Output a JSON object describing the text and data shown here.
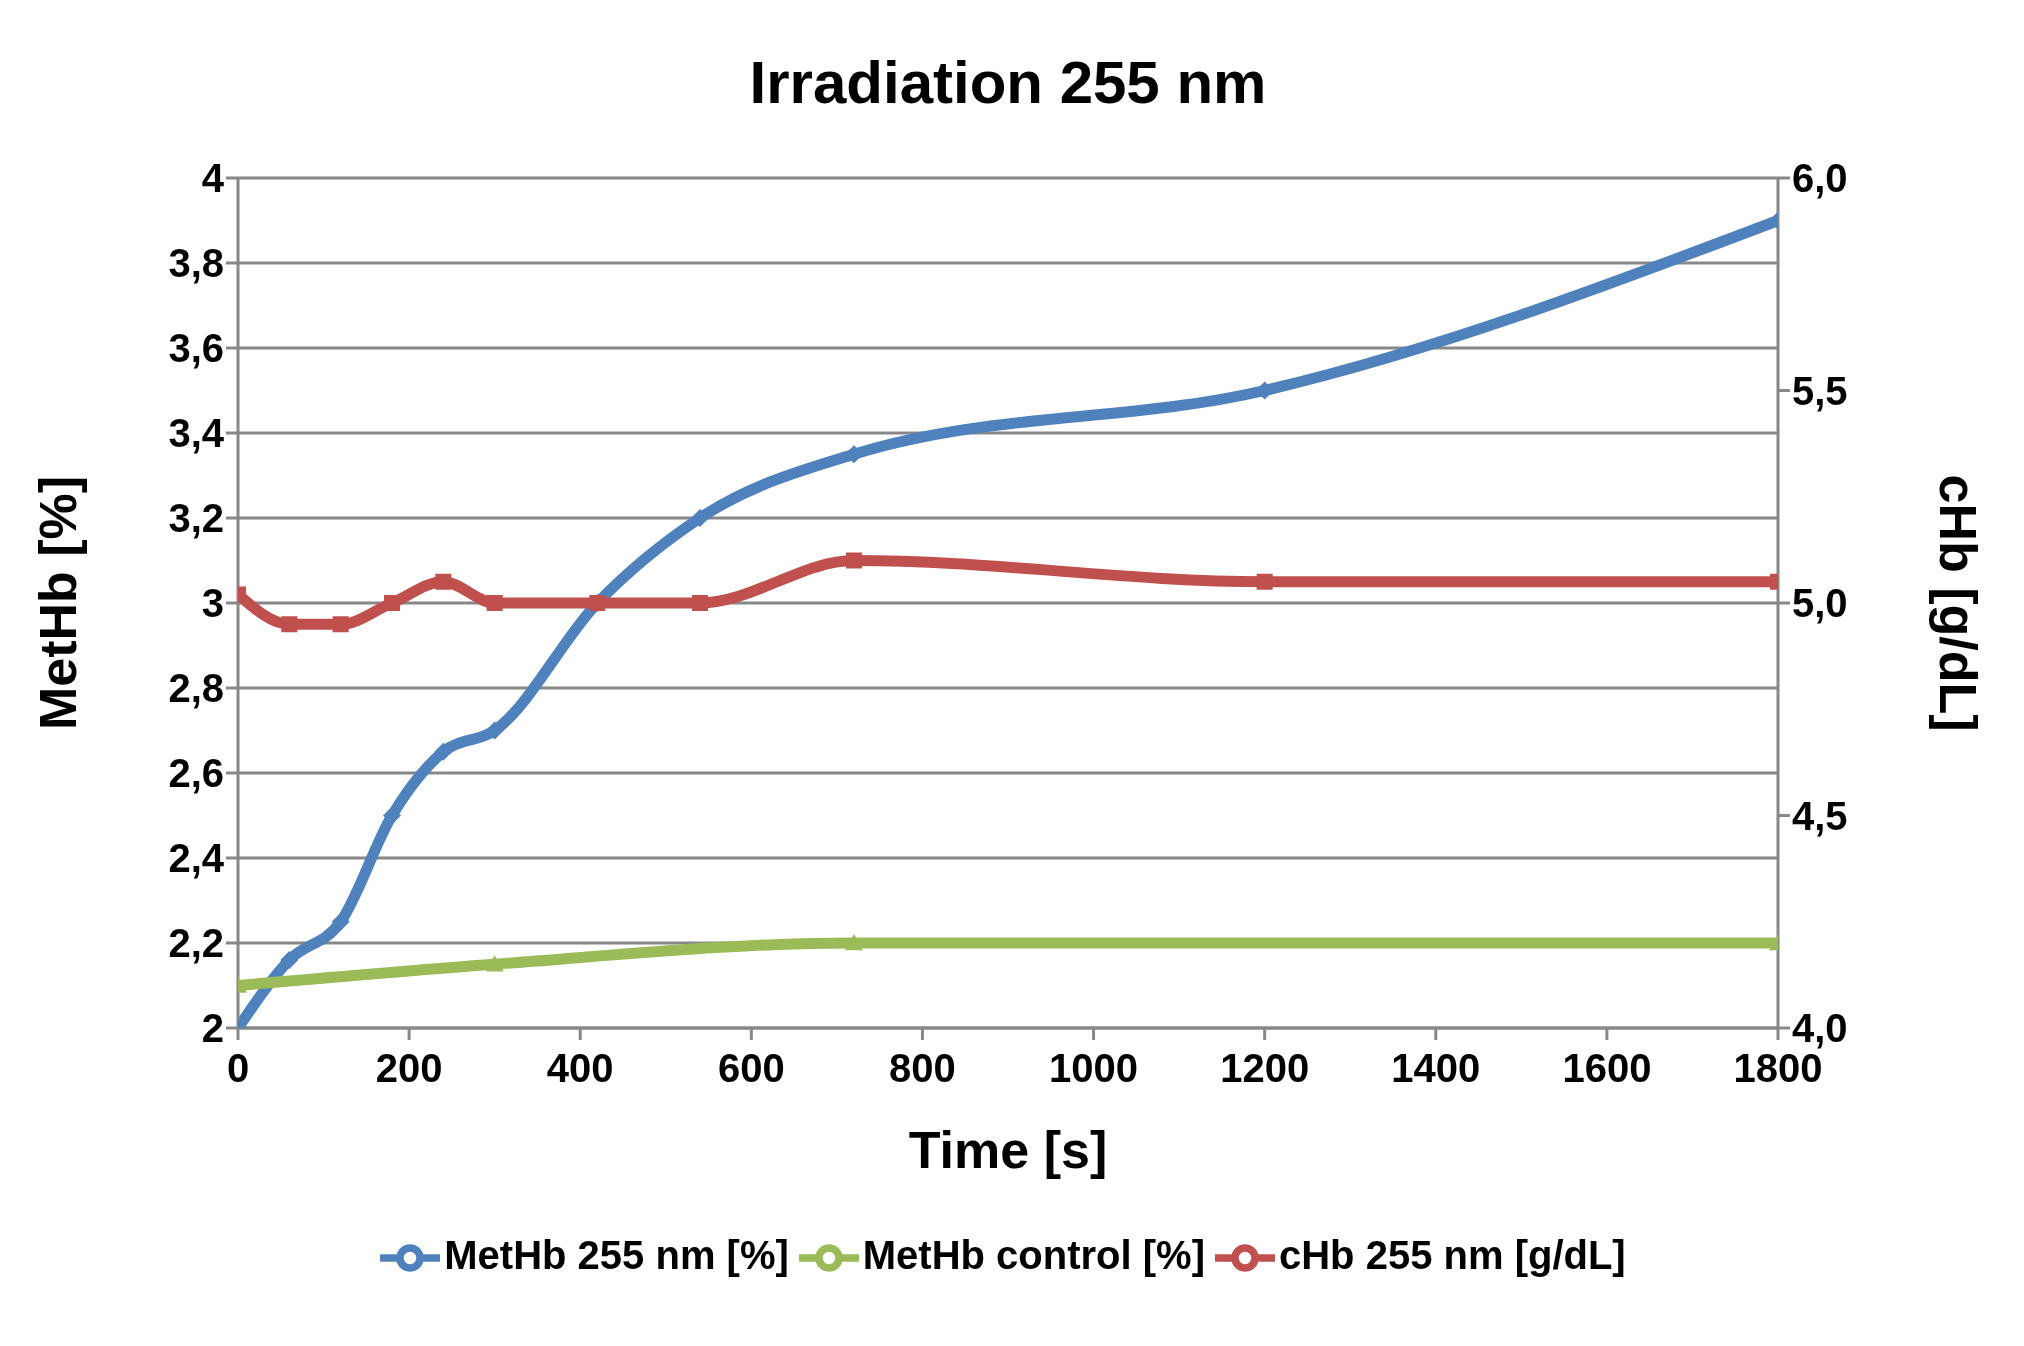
{
  "chart_data": {
    "type": "line",
    "title": "Irradiation 255 nm",
    "xlabel": "Time [s]",
    "ylabel": "MetHb [%]",
    "y2label": "cHb [g/dL]",
    "xlim": [
      0,
      1800
    ],
    "xticks": [
      0,
      200,
      400,
      600,
      800,
      1000,
      1200,
      1400,
      1600,
      1800
    ],
    "ylim": [
      2,
      4
    ],
    "yticks": [
      2,
      {
        "value": 2.2,
        "label": "2,2"
      },
      {
        "value": 2.4,
        "label": "2,4"
      },
      {
        "value": 2.6,
        "label": "2,6"
      },
      {
        "value": 2.8,
        "label": "2,8"
      },
      3,
      {
        "value": 3.2,
        "label": "3,2"
      },
      {
        "value": 3.4,
        "label": "3,4"
      },
      {
        "value": 3.6,
        "label": "3,6"
      },
      {
        "value": 3.8,
        "label": "3,8"
      },
      4
    ],
    "y2lim": [
      4,
      6
    ],
    "y2ticks": [
      {
        "value": 4,
        "label": "4,0"
      },
      {
        "value": 4.5,
        "label": "4,5"
      },
      {
        "value": 5,
        "label": "5,0"
      },
      {
        "value": 5.5,
        "label": "5,5"
      },
      {
        "value": 6,
        "label": "6,0"
      }
    ],
    "grid": "y",
    "legend": "bottom",
    "line_style": "solid",
    "series": [
      {
        "name": "MetHb 255 nm [%]",
        "color": "#4f81bd",
        "marker": "diamond",
        "x": [
          0,
          60,
          120,
          180,
          240,
          300,
          420,
          540,
          720,
          1200,
          1800
        ],
        "values": [
          2,
          2.16,
          2.25,
          2.5,
          2.65,
          2.7,
          3,
          3.2,
          3.35,
          3.5,
          3.9
        ]
      },
      {
        "name": "MetHb control [%]",
        "color": "#9bbb59",
        "marker": "triangle",
        "x": [
          0,
          300,
          720,
          1800
        ],
        "values": [
          2.1,
          2.15,
          2.2,
          2.2
        ]
      },
      {
        "name": "cHb 255 nm [g/dL]",
        "color": "#c0504d",
        "marker": "square",
        "axis": "y2",
        "x": [
          0,
          60,
          120,
          180,
          240,
          300,
          420,
          540,
          720,
          1200,
          1800
        ],
        "values": [
          5.02,
          4.95,
          4.95,
          5,
          5.05,
          5,
          5,
          5,
          5.1,
          5.05,
          5.05
        ]
      }
    ]
  }
}
